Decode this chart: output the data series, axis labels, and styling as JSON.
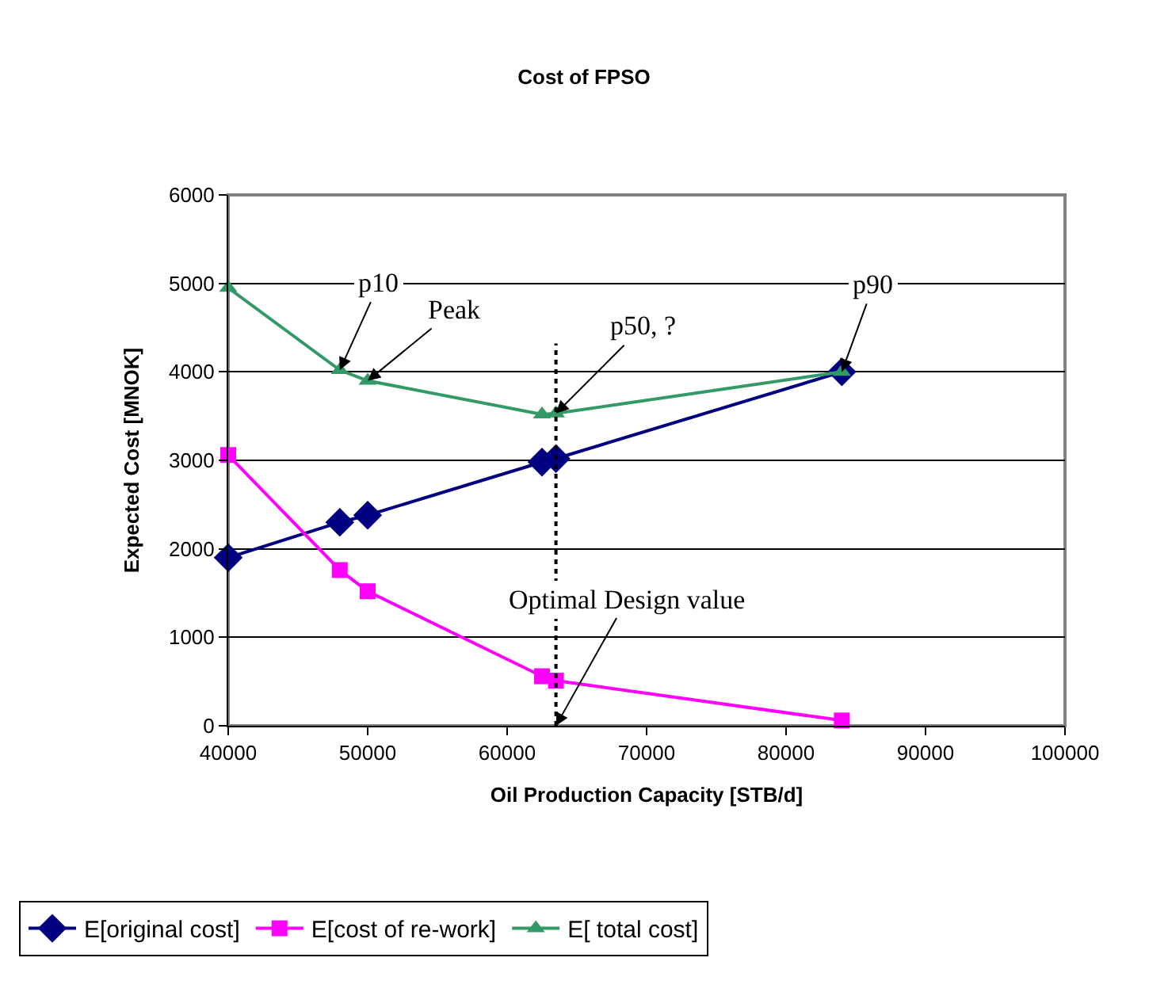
{
  "chart_data": {
    "type": "line",
    "title": "Cost of FPSO",
    "xlabel": "Oil Production Capacity [STB/d]",
    "ylabel": "Expected Cost [MNOK]",
    "x": [
      40000,
      48000,
      50000,
      62500,
      63500,
      84000
    ],
    "series": [
      {
        "name": "E[original cost]",
        "color": "#000080",
        "marker": "diamond",
        "values": [
          1900,
          2300,
          2380,
          2980,
          3020,
          4000
        ]
      },
      {
        "name": "E[cost of re-work]",
        "color": "#ff00ff",
        "marker": "square",
        "values": [
          3060,
          1760,
          1520,
          560,
          510,
          60
        ]
      },
      {
        "name": "E[ total cost]",
        "color": "#339966",
        "marker": "triangle",
        "values": [
          4950,
          4020,
          3900,
          3520,
          3530,
          4000
        ]
      }
    ],
    "xlim": [
      40000,
      100000
    ],
    "xticks": [
      40000,
      50000,
      60000,
      70000,
      80000,
      90000,
      100000
    ],
    "ylim": [
      0,
      6000
    ],
    "yticks": [
      0,
      1000,
      2000,
      3000,
      4000,
      5000,
      6000
    ],
    "grid": "y",
    "legend": "bottom",
    "line_style": "solid",
    "ref_lines": [
      {
        "axis": "x",
        "value": 63500,
        "line_style": "dotted",
        "color": "#000000"
      }
    ],
    "annotations": [
      {
        "text": "p10",
        "x": 48000,
        "y": 4020
      },
      {
        "text": "Peak",
        "x": 50000,
        "y": 3900
      },
      {
        "text": "p50, ?",
        "x": 63500,
        "y": 3530
      },
      {
        "text": "p90",
        "x": 84000,
        "y": 4000
      },
      {
        "text": "Optimal Design value",
        "x": 63500,
        "y": 0
      }
    ]
  }
}
